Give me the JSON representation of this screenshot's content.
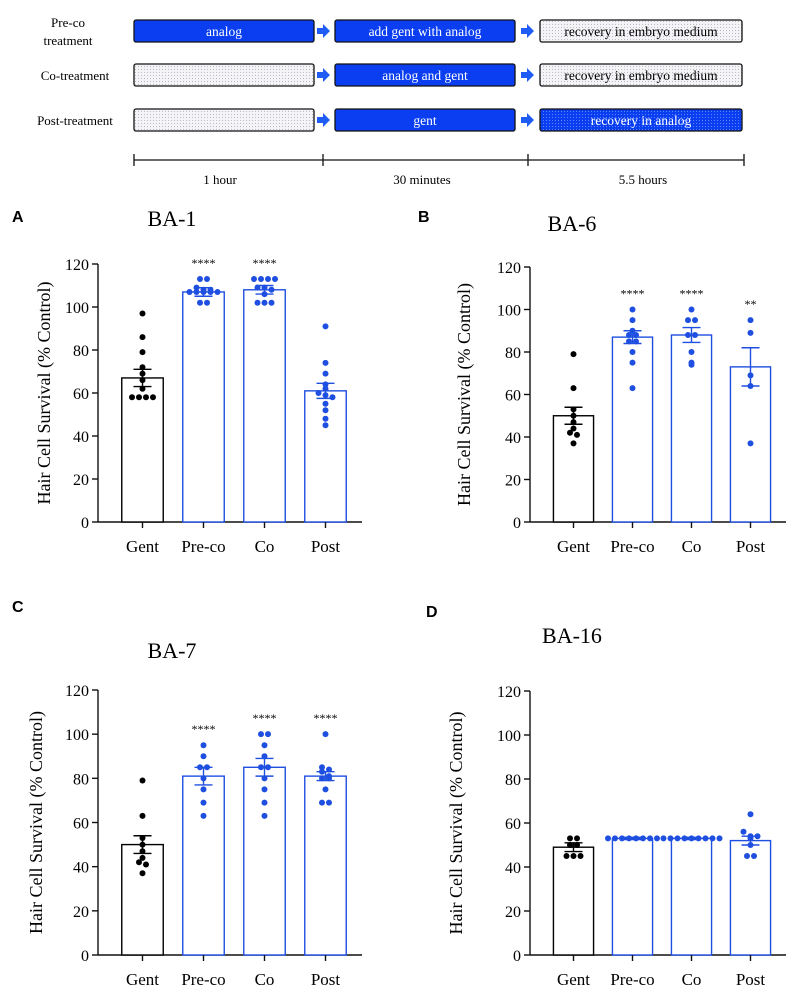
{
  "schematic": {
    "rows": [
      {
        "label": [
          "Pre-co",
          "treatment"
        ],
        "boxes": [
          {
            "text": "analog",
            "style": "blue"
          },
          {
            "text": "add gent with analog",
            "style": "blue"
          },
          {
            "text": "recovery in embryo medium",
            "style": "gray"
          }
        ]
      },
      {
        "label": [
          "Co-treatment"
        ],
        "boxes": [
          {
            "text": "",
            "style": "gray"
          },
          {
            "text": "analog and gent",
            "style": "blue"
          },
          {
            "text": "recovery in embryo medium",
            "style": "gray"
          }
        ]
      },
      {
        "label": [
          "Post-treatment"
        ],
        "boxes": [
          {
            "text": "",
            "style": "gray"
          },
          {
            "text": "gent",
            "style": "blue"
          },
          {
            "text": "recovery in analog",
            "style": "dotblue"
          }
        ]
      }
    ],
    "timeline": [
      "1 hour",
      "30 minutes",
      "5.5 hours"
    ],
    "colors": {
      "blue": "#0a3ef0",
      "gray_fill": "#f2f2f2",
      "arrow": "#1e5cf5"
    }
  },
  "chart_data": [
    {
      "panel": "A",
      "type": "bar",
      "title": "BA-1",
      "ylabel": "Hair Cell Survival (% Control)",
      "ylim": [
        0,
        120
      ],
      "yticks": [
        0,
        20,
        40,
        60,
        80,
        100,
        120
      ],
      "categories": [
        "Gent",
        "Pre-co",
        "Co",
        "Post"
      ],
      "means": [
        67,
        107,
        108,
        61
      ],
      "sem": [
        4,
        2,
        2,
        3.5
      ],
      "significance": [
        "",
        "****",
        "****",
        ""
      ],
      "colors": [
        "#000000",
        "#1f4fe0",
        "#1f4fe0",
        "#1f4fe0"
      ],
      "points": [
        [
          97,
          86,
          79,
          72,
          69,
          66,
          62,
          58,
          58,
          58,
          58
        ],
        [
          113,
          113,
          109,
          108,
          108,
          107,
          107,
          107,
          107,
          107,
          102,
          102
        ],
        [
          113,
          113,
          113,
          113,
          109,
          109,
          108,
          106,
          102,
          102,
          102
        ],
        [
          91,
          74,
          69,
          64,
          62,
          60,
          59,
          58,
          55,
          52,
          48,
          45
        ]
      ]
    },
    {
      "panel": "B",
      "type": "bar",
      "title": "BA-6",
      "ylabel": "Hair Cell Survival (% Control)",
      "ylim": [
        0,
        120
      ],
      "yticks": [
        0,
        20,
        40,
        60,
        80,
        100,
        120
      ],
      "categories": [
        "Gent",
        "Pre-co",
        "Co",
        "Post"
      ],
      "means": [
        50,
        87,
        88,
        73
      ],
      "sem": [
        4,
        3,
        3.5,
        9
      ],
      "significance": [
        "",
        "****",
        "****",
        "**"
      ],
      "colors": [
        "#000000",
        "#1f4fe0",
        "#1f4fe0",
        "#1f4fe0"
      ],
      "points": [
        [
          79,
          63,
          53,
          50,
          47,
          44,
          42,
          41,
          37
        ],
        [
          100,
          95,
          90,
          88,
          88,
          85,
          85,
          80,
          75,
          63
        ],
        [
          100,
          95,
          95,
          88,
          88,
          80,
          75,
          74
        ],
        [
          95,
          89,
          69,
          64,
          37
        ]
      ]
    },
    {
      "panel": "C",
      "type": "bar",
      "title": "BA-7",
      "ylabel": "Hair Cell Survival (% Control)",
      "ylim": [
        0,
        120
      ],
      "yticks": [
        0,
        20,
        40,
        60,
        80,
        100,
        120
      ],
      "categories": [
        "Gent",
        "Pre-co",
        "Co",
        "Post"
      ],
      "means": [
        50,
        81,
        85,
        81
      ],
      "sem": [
        4,
        4,
        4,
        2
      ],
      "significance": [
        "",
        "****",
        "****",
        "****"
      ],
      "colors": [
        "#000000",
        "#1f4fe0",
        "#1f4fe0",
        "#1f4fe0"
      ],
      "points": [
        [
          79,
          63,
          53,
          50,
          47,
          44,
          42,
          41,
          37
        ],
        [
          95,
          90,
          85,
          85,
          80,
          75,
          69,
          63
        ],
        [
          100,
          100,
          95,
          90,
          85,
          85,
          80,
          75,
          69,
          63
        ],
        [
          100,
          85,
          84,
          83,
          81,
          80,
          80,
          75,
          69,
          69
        ]
      ]
    },
    {
      "panel": "D",
      "type": "bar",
      "title": "BA-16",
      "ylabel": "Hair Cell Survival (% Control)",
      "ylim": [
        0,
        120
      ],
      "yticks": [
        0,
        20,
        40,
        60,
        80,
        100,
        120
      ],
      "categories": [
        "Gent",
        "Pre-co",
        "Co",
        "Post"
      ],
      "means": [
        49,
        53,
        53,
        52
      ],
      "sem": [
        2,
        0.5,
        0.5,
        2
      ],
      "significance": [
        "",
        "",
        "",
        ""
      ],
      "colors": [
        "#000000",
        "#1f4fe0",
        "#1f4fe0",
        "#1f4fe0"
      ],
      "points": [
        [
          53,
          53,
          50,
          50,
          45,
          45,
          45
        ],
        [
          53,
          53,
          53,
          53,
          53,
          53,
          53,
          53
        ],
        [
          53,
          53,
          53,
          53,
          53,
          53,
          53,
          53,
          53
        ],
        [
          64,
          56,
          54,
          54,
          53,
          50,
          45,
          45
        ]
      ]
    }
  ]
}
